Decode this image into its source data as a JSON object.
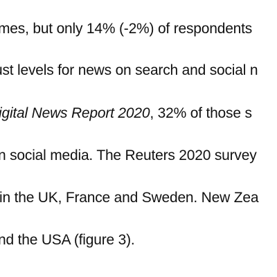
{
  "document": {
    "lines": [
      "mes, but only 14% (-2%) of respondents",
      "ust levels for news on search and social n",
      {
        "italic": "igital News Report 2020",
        "rest": ", 32% of those s"
      },
      "n social media. The Reuters 2020 survey",
      " in the UK, France and Sweden. New Zea",
      "nd the USA (figure 3)."
    ]
  }
}
